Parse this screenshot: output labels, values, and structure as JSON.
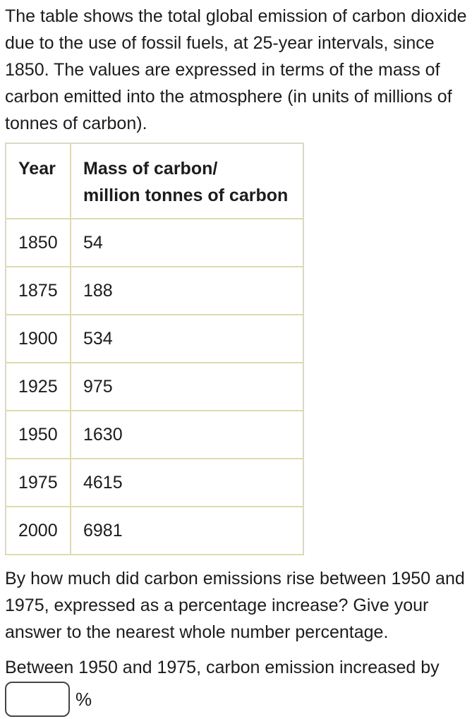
{
  "colors": {
    "background": "#ffffff",
    "text": "#1c1c1c",
    "table_border": "#ded9ba",
    "input_border": "#454545"
  },
  "intro_paragraph": "The table shows the total global emission of carbon dioxide due to the use of fossil fuels, at 25-year intervals, since 1850. The values are expressed in terms of the mass of carbon emitted into the atmosphere (in units of millions of tonnes of carbon).",
  "table": {
    "header": {
      "year": "Year",
      "mass_line1": "Mass of carbon/",
      "mass_line2": "million tonnes of carbon"
    },
    "rows": [
      {
        "year": "1850",
        "mass": "54"
      },
      {
        "year": "1875",
        "mass": "188"
      },
      {
        "year": "1900",
        "mass": "534"
      },
      {
        "year": "1925",
        "mass": "975"
      },
      {
        "year": "1950",
        "mass": "1630"
      },
      {
        "year": "1975",
        "mass": "4615"
      },
      {
        "year": "2000",
        "mass": "6981"
      }
    ]
  },
  "question_paragraph": "By how much did carbon emissions rise between 1950 and 1975, expressed as a percentage increase? Give your answer to the nearest whole number percentage.",
  "answer": {
    "sentence": "Between 1950 and 1975, carbon emission increased by",
    "input_value": "",
    "unit": "%"
  }
}
